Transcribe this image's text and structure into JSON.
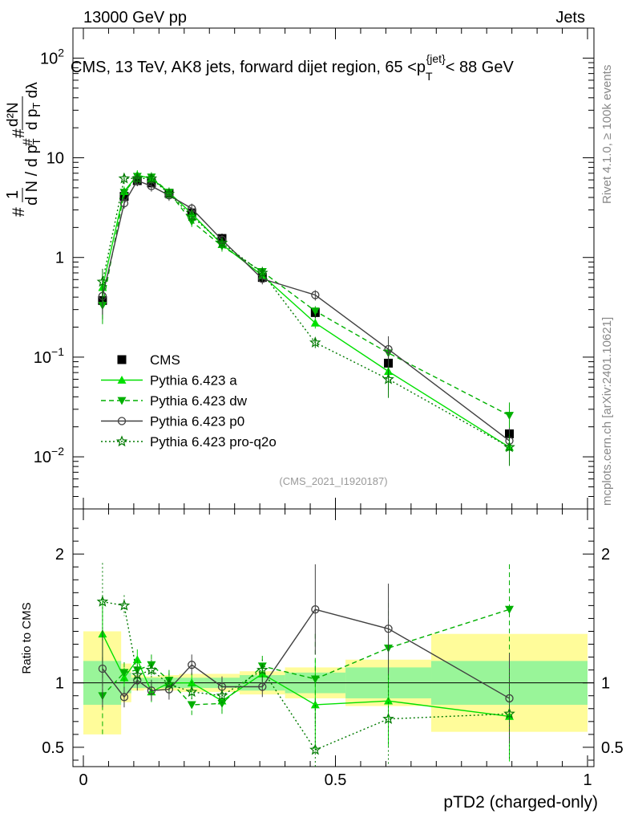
{
  "header": {
    "energy_label": "13000 GeV pp",
    "category_label": "Jets",
    "rivet_label": "Rivet 4.1.0, ≥ 100k events",
    "source_label": "mcplots.cern.ch [arXiv:2401.10621]",
    "analysis_id": "(CMS_2021_I1920187)"
  },
  "chart_data": [
    {
      "name": "main",
      "type": "line",
      "title": "CMS, 13 TeV, AK8 jets, forward dijet region, 65 <p_T^{jet}< 88 GeV",
      "xlabel": "pTD2 (charged-only)",
      "ylabel": "(1/(dN/dp_T)) d²N/(dp_T dλ)",
      "yscale": "log",
      "xlim": [
        0,
        1
      ],
      "ylim": [
        0.003,
        200
      ],
      "ytick_labels": [
        "10^-2",
        "10^-1",
        "1",
        "10",
        "10^2"
      ],
      "x": [
        0.038,
        0.081,
        0.107,
        0.135,
        0.17,
        0.215,
        0.275,
        0.355,
        0.46,
        0.605,
        0.845
      ],
      "series": [
        {
          "name": "CMS",
          "values": [
            0.37,
            4.1,
            5.9,
            5.6,
            4.4,
            2.8,
            1.55,
            0.63,
            0.28,
            0.087,
            0.017
          ]
        },
        {
          "name": "Pythia 6.423 a",
          "values": [
            0.5,
            4.6,
            6.7,
            6.2,
            4.5,
            2.75,
            1.35,
            0.66,
            0.22,
            0.072,
            0.0125
          ]
        },
        {
          "name": "Pythia 6.423 dw",
          "values": [
            0.33,
            4.5,
            6.5,
            6.4,
            4.5,
            2.3,
            1.3,
            0.72,
            0.29,
            0.11,
            0.026
          ]
        },
        {
          "name": "Pythia 6.423 p0",
          "values": [
            0.41,
            3.5,
            5.9,
            5.2,
            4.2,
            3.1,
            1.5,
            0.61,
            0.42,
            0.12,
            0.0145
          ]
        },
        {
          "name": "Pythia 6.423 pro-q2o",
          "values": [
            0.57,
            6.2,
            6.2,
            6.2,
            4.35,
            2.6,
            1.4,
            0.7,
            0.14,
            0.06,
            0.0125
          ]
        }
      ]
    },
    {
      "name": "ratio",
      "type": "line",
      "ylabel": "Ratio to CMS",
      "xlabel": "pTD2 (charged-only)",
      "xlim": [
        0,
        1
      ],
      "ylim": [
        0.35,
        2.35
      ],
      "ytick_labels": [
        "0.5",
        "1",
        "2"
      ],
      "xtick_labels": [
        "0",
        "0.5",
        "1"
      ],
      "bins": [
        0,
        0.075,
        0.095,
        0.12,
        0.15,
        0.19,
        0.24,
        0.31,
        0.4,
        0.52,
        0.69,
        1.0
      ],
      "band_stat": [
        0.17,
        0.08,
        0.04,
        0.04,
        0.04,
        0.04,
        0.04,
        0.06,
        0.08,
        0.12,
        0.17
      ],
      "band_total": [
        0.4,
        0.15,
        0.06,
        0.05,
        0.06,
        0.07,
        0.07,
        0.09,
        0.12,
        0.18,
        0.38
      ],
      "x": [
        0.038,
        0.081,
        0.107,
        0.135,
        0.17,
        0.215,
        0.275,
        0.355,
        0.46,
        0.605,
        0.845
      ],
      "series": [
        {
          "name": "Pythia 6.423 a",
          "values": [
            1.38,
            1.04,
            1.18,
            0.93,
            1.0,
            1.0,
            0.86,
            1.07,
            0.83,
            0.86,
            0.74
          ]
        },
        {
          "name": "Pythia 6.423 dw",
          "values": [
            0.9,
            1.08,
            1.1,
            1.14,
            1.02,
            0.83,
            0.84,
            1.13,
            1.03,
            1.27,
            1.57
          ]
        },
        {
          "name": "Pythia 6.423 p0",
          "values": [
            1.11,
            0.89,
            1.02,
            0.94,
            0.95,
            1.14,
            0.97,
            0.97,
            1.57,
            1.42,
            0.88
          ]
        },
        {
          "name": "Pythia 6.423 pro-q2o",
          "values": [
            1.63,
            1.6,
            1.06,
            1.1,
            0.99,
            0.93,
            0.9,
            1.1,
            0.48,
            0.72,
            0.76
          ]
        }
      ]
    }
  ],
  "legend": [
    {
      "label": "CMS",
      "color": "#000000",
      "marker": "square",
      "dash": "none"
    },
    {
      "label": "Pythia 6.423 a",
      "color": "#00e000",
      "marker": "triangle-up",
      "dash": "solid"
    },
    {
      "label": "Pythia 6.423 dw",
      "color": "#00b000",
      "marker": "triangle-down",
      "dash": "dashed"
    },
    {
      "label": "Pythia 6.423 p0",
      "color": "#404040",
      "marker": "circle-open",
      "dash": "solid"
    },
    {
      "label": "Pythia 6.423 pro-q2o",
      "color": "#007a00",
      "marker": "star-open",
      "dash": "dotted"
    }
  ],
  "colors": {
    "band_stat": "#99f599",
    "band_total": "#fffc9a"
  }
}
